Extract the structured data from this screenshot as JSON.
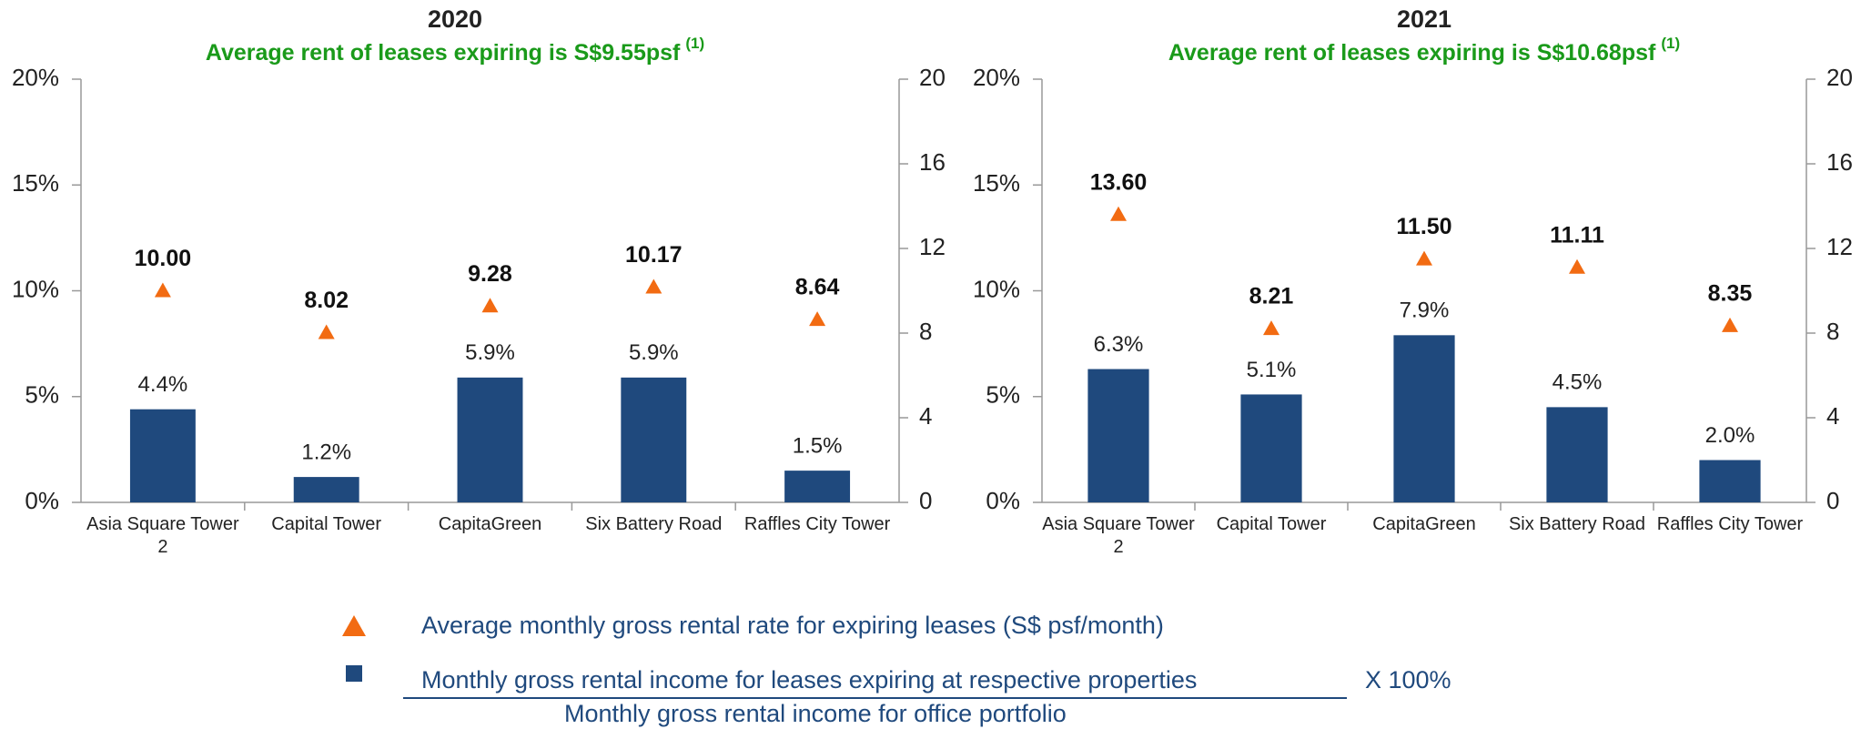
{
  "chart_data": [
    {
      "type": "bar",
      "title": "2020",
      "subtitle": "Average rent of leases expiring is S$9.55psf",
      "subtitle_note": "(1)",
      "categories": [
        "Asia Square Tower 2",
        "Capital Tower",
        "CapitaGreen",
        "Six Battery Road",
        "Raffles City Tower"
      ],
      "series": [
        {
          "type": "bar",
          "color": "#1f497d",
          "values": [
            4.4,
            1.2,
            5.9,
            5.9,
            1.5
          ],
          "value_labels": [
            "4.4%",
            "1.2%",
            "5.9%",
            "5.9%",
            "1.5%"
          ]
        },
        {
          "type": "scatter",
          "marker": "triangle",
          "axis": "y2",
          "color": "#f26b12",
          "values": [
            10.0,
            8.02,
            9.28,
            10.17,
            8.64
          ],
          "value_labels": [
            "10.00",
            "8.02",
            "9.28",
            "10.17",
            "8.64"
          ]
        }
      ],
      "ylim": [
        0,
        20
      ],
      "yticks": [
        {
          "value": 0,
          "label": "0%"
        },
        {
          "value": 5,
          "label": "5%"
        },
        {
          "value": 10,
          "label": "10%"
        },
        {
          "value": 15,
          "label": "15%"
        },
        {
          "value": 20,
          "label": "20%"
        }
      ],
      "y2lim": [
        0,
        20
      ],
      "y2ticks": [
        0,
        4,
        8,
        12,
        16,
        20
      ]
    },
    {
      "type": "bar",
      "title": "2021",
      "subtitle": "Average rent of leases expiring is S$10.68psf",
      "subtitle_note": "(1)",
      "categories": [
        "Asia Square Tower 2",
        "Capital Tower",
        "CapitaGreen",
        "Six Battery Road",
        "Raffles City Tower"
      ],
      "series": [
        {
          "type": "bar",
          "color": "#1f497d",
          "values": [
            6.3,
            5.1,
            7.9,
            4.5,
            2.0
          ],
          "value_labels": [
            "6.3%",
            "5.1%",
            "7.9%",
            "4.5%",
            "2.0%"
          ]
        },
        {
          "type": "scatter",
          "marker": "triangle",
          "axis": "y2",
          "color": "#f26b12",
          "values": [
            13.6,
            8.21,
            11.5,
            11.11,
            8.35
          ],
          "value_labels": [
            "13.60",
            "8.21",
            "11.50",
            "11.11",
            "8.35"
          ]
        }
      ],
      "ylim": [
        0,
        20
      ],
      "yticks": [
        {
          "value": 0,
          "label": "0%"
        },
        {
          "value": 5,
          "label": "5%"
        },
        {
          "value": 10,
          "label": "10%"
        },
        {
          "value": 15,
          "label": "15%"
        },
        {
          "value": 20,
          "label": "20%"
        }
      ],
      "y2lim": [
        0,
        20
      ],
      "y2ticks": [
        0,
        4,
        8,
        12,
        16,
        20
      ]
    }
  ],
  "legend": {
    "triangle": "Average monthly gross rental rate for expiring leases (S$ psf/month)",
    "numerator": "Monthly gross rental income for leases expiring at respective properties",
    "multiplier": "X 100%",
    "denominator": "Monthly gross rental income for office portfolio"
  }
}
